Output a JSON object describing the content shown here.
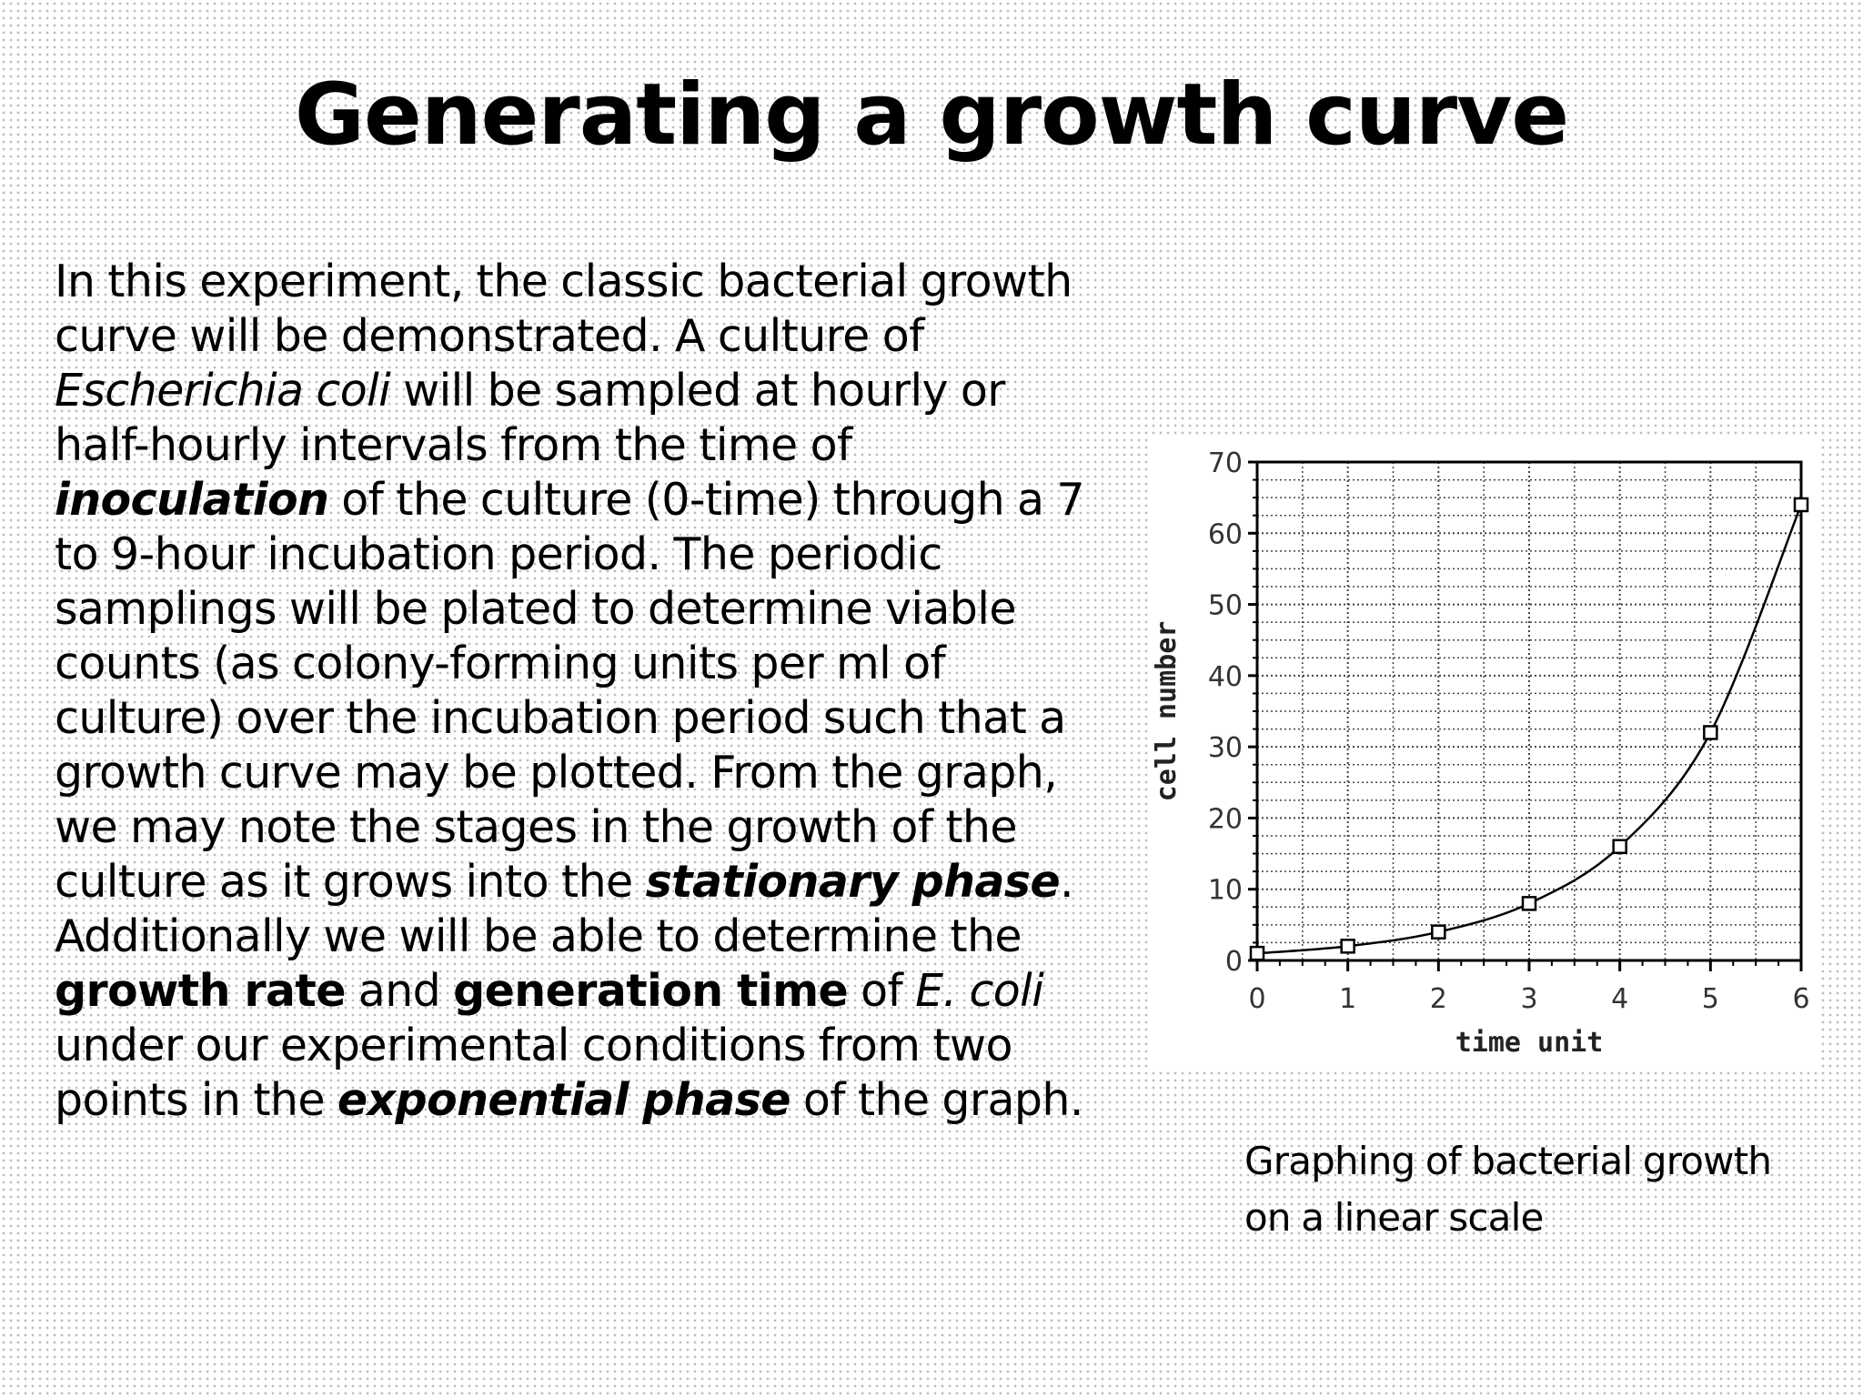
{
  "slide": {
    "title": "Generating a growth curve",
    "paragraph": {
      "l1": "In this experiment, the classic bacterial growth",
      "l2": "curve will be demonstrated. A culture of",
      "l3_italic": "Escherichia coli",
      "l3_rest": " will be sampled at hourly or",
      "l4": "half-hourly intervals from the time of",
      "l5_bold_italic": "inoculation",
      "l5_rest": " of the culture (0-time) through a 7",
      "l6": "to 9-hour incubation period. The periodic",
      "l7": "samplings will be plated to determine viable",
      "l8": "counts (as colony-forming units per ml of",
      "l9": "culture) over the incubation period such that a",
      "l10": "growth curve may be plotted. From the graph,",
      "l11": "we may note the stages in the growth of the",
      "l12_start": "culture as it grows into the ",
      "l12_bold_italic": "stationary phase",
      "l12_end": ".",
      "l13": "Additionally we will be able to determine the",
      "l14_bold1": "growth rate",
      "l14_mid": " and ",
      "l14_bold2": "generation time",
      "l14_of": " of ",
      "l14_italic": "E. coli",
      "l15": "under our experimental conditions from two",
      "l16_start": "points in the ",
      "l16_bold_italic": "exponential phase",
      "l16_end": " of the graph."
    },
    "caption": {
      "line1": "Graphing of bacterial growth",
      "line2": "on a linear scale"
    }
  },
  "chart_data": {
    "type": "line",
    "title": "",
    "xlabel": "time unit",
    "ylabel": "cell number",
    "x": [
      0,
      1,
      2,
      3,
      4,
      5,
      6
    ],
    "series": [
      {
        "values": [
          1,
          2,
          4,
          8,
          16,
          32,
          64
        ]
      }
    ],
    "xlim": [
      0,
      6
    ],
    "ylim": [
      0,
      70
    ],
    "x_ticks": [
      "0",
      "1",
      "2",
      "3",
      "4",
      "5",
      "6"
    ],
    "y_ticks": [
      "0",
      "10",
      "20",
      "30",
      "40",
      "50",
      "60",
      "70"
    ],
    "grid": true,
    "legend": "none",
    "marker": "square",
    "line_color": "#000000",
    "grid_color": "#444444"
  }
}
